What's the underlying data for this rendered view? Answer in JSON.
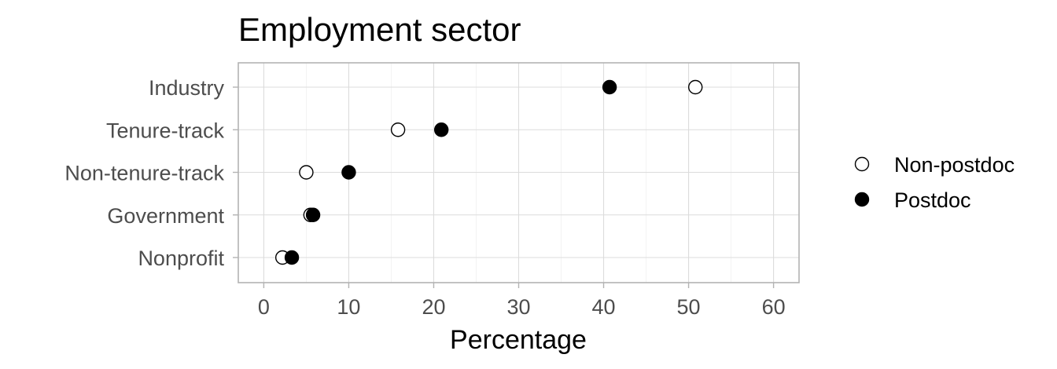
{
  "chart_data": {
    "type": "scatter",
    "title": "Employment sector",
    "xlabel": "Percentage",
    "ylabel": "",
    "xlim": [
      -3,
      63
    ],
    "x_ticks": [
      "0",
      "10",
      "20",
      "30",
      "40",
      "50",
      "60"
    ],
    "categories": [
      "Industry",
      "Tenure-track",
      "Non-tenure-track",
      "Government",
      "Nonprofit"
    ],
    "grid": true,
    "legend_position": "right",
    "series": [
      {
        "name": "Non-postdoc",
        "marker": "open-circle",
        "color": "#ffffff",
        "stroke": "#000000",
        "values": [
          50.8,
          15.8,
          5.0,
          5.5,
          2.2
        ]
      },
      {
        "name": "Postdoc",
        "marker": "filled-circle",
        "color": "#000000",
        "stroke": "#000000",
        "values": [
          40.7,
          20.9,
          10.0,
          5.8,
          3.3
        ]
      }
    ]
  }
}
